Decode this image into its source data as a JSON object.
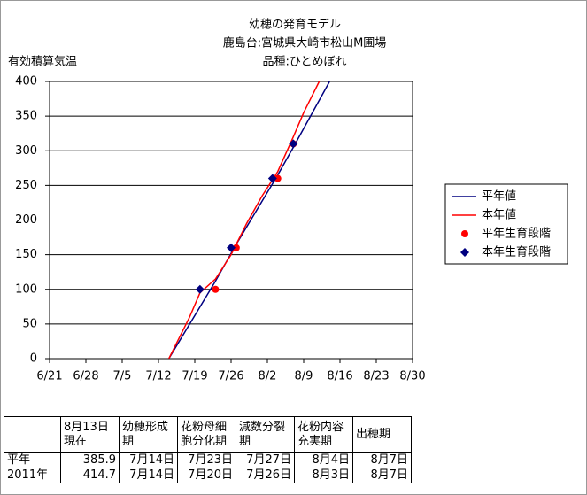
{
  "chart_data": {
    "type": "line",
    "title": [
      "幼穂の発育モデル",
      "鹿島台:宮城県大崎市松山M圃場",
      "品種:ひとめぼれ"
    ],
    "y_label": "有効積算気温",
    "xlim": [
      172,
      242
    ],
    "xticks": [
      {
        "value": 172,
        "label": "6/21"
      },
      {
        "value": 179,
        "label": "6/28"
      },
      {
        "value": 186,
        "label": "7/5"
      },
      {
        "value": 193,
        "label": "7/12"
      },
      {
        "value": 200,
        "label": "7/19"
      },
      {
        "value": 207,
        "label": "7/26"
      },
      {
        "value": 214,
        "label": "8/2"
      },
      {
        "value": 221,
        "label": "8/9"
      },
      {
        "value": 228,
        "label": "8/16"
      },
      {
        "value": 235,
        "label": "8/23"
      },
      {
        "value": 242,
        "label": "8/30"
      }
    ],
    "ylim": [
      0,
      400
    ],
    "yticks": [
      0,
      50,
      100,
      150,
      200,
      250,
      300,
      350,
      400
    ],
    "grid": true,
    "legend": "right",
    "series": [
      {
        "name": "平年値",
        "color": "#000080",
        "style": "line",
        "x": [
          195,
          204,
          208,
          216,
          219,
          226
        ],
        "values": [
          0,
          112,
          165,
          265,
          305,
          400
        ]
      },
      {
        "name": "本年値",
        "color": "#ff0000",
        "style": "line",
        "x": [
          195,
          199,
          201,
          204,
          207,
          210,
          213,
          216,
          219,
          221,
          224
        ],
        "values": [
          0,
          60,
          95,
          115,
          150,
          195,
          235,
          270,
          320,
          355,
          400
        ]
      },
      {
        "name": "平年生育段階",
        "color": "#ff0000",
        "style": "circle",
        "x": [
          204,
          208,
          216,
          219
        ],
        "values": [
          100,
          160,
          260,
          310
        ]
      },
      {
        "name": "本年生育段階",
        "color": "#000080",
        "style": "diamond",
        "x": [
          201,
          207,
          215,
          219
        ],
        "values": [
          100,
          160,
          260,
          310
        ]
      }
    ]
  },
  "table": {
    "header": [
      "8月13日現在",
      "幼穂形成期",
      "花粉母細胞分化期",
      "減数分裂期",
      "花粉内容充実期",
      "出穂期"
    ],
    "rows": [
      [
        "平年",
        385.9,
        "7月14日",
        "7月23日",
        "7月27日",
        "8月4日",
        "8月7日"
      ],
      [
        "2011年",
        414.7,
        "7月14日",
        "7月20日",
        "7月26日",
        "8月3日",
        "8月7日"
      ]
    ]
  }
}
